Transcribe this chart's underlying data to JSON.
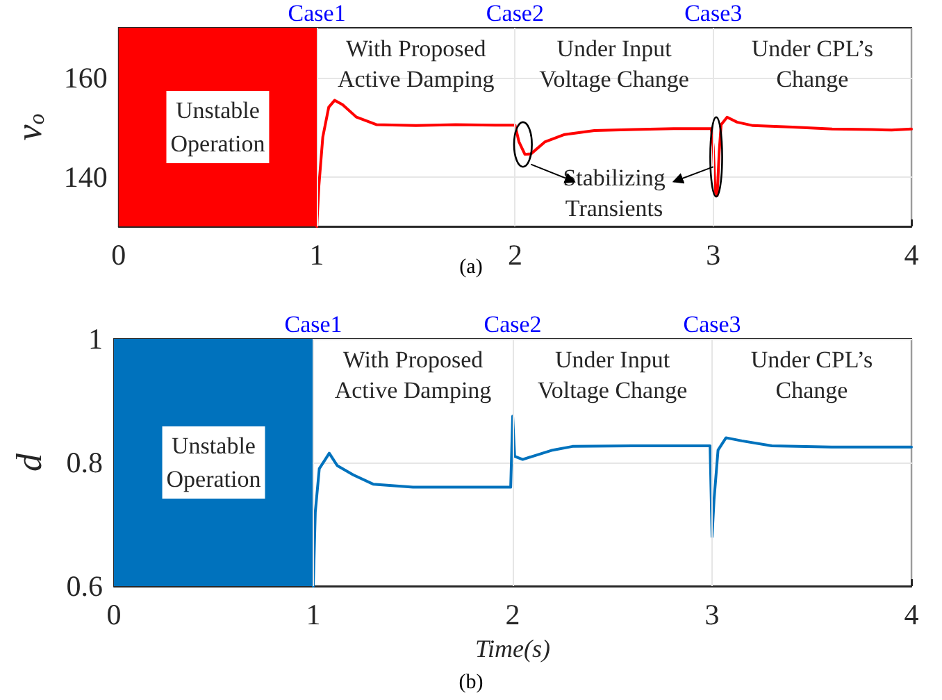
{
  "chart_data": [
    {
      "type": "line",
      "title": "(a)",
      "ylabel": "v$_{o}$",
      "xlim": [
        0,
        4
      ],
      "xticks": [
        0,
        1,
        2,
        3,
        4
      ],
      "ylim": [
        130,
        170
      ],
      "yticks": [
        140,
        160
      ],
      "grid": true,
      "marker": "none",
      "line_style": "solid",
      "series": [
        {
          "color": "#ff0000",
          "x": [
            1.0,
            1.01,
            1.03,
            1.06,
            1.09,
            1.13,
            1.2,
            1.3,
            1.5,
            1.7,
            1.9,
            2.0,
            2.02,
            2.05,
            2.08,
            2.15,
            2.25,
            2.4,
            2.6,
            2.8,
            2.99,
            3.0,
            3.01,
            3.02,
            3.03,
            3.04,
            3.07,
            3.12,
            3.2,
            3.4,
            3.6,
            3.8,
            3.9,
            4.0
          ],
          "values": [
            130,
            138,
            148,
            154,
            155.4,
            154.5,
            152,
            150.5,
            150.3,
            150.5,
            150.4,
            150.4,
            147,
            144.5,
            144.6,
            147,
            148.5,
            149.3,
            149.5,
            149.7,
            149.7,
            146,
            137,
            136.2,
            145,
            150.5,
            152,
            151,
            150.3,
            150,
            149.6,
            149.5,
            149.4,
            149.6
          ]
        }
      ],
      "bands": [
        {
          "axis": "x",
          "from": 0,
          "to": 1,
          "label": "Unstable\nOperation",
          "color": "#ff0000"
        }
      ],
      "ref_lines": [
        {
          "axis": "x",
          "value": 1,
          "label": "Case1",
          "color": "#e6e6e6"
        },
        {
          "axis": "x",
          "value": 2,
          "label": "Case2",
          "color": "#e6e6e6"
        },
        {
          "axis": "x",
          "value": 3,
          "label": "Case3",
          "color": "#e6e6e6"
        }
      ],
      "annotations": [
        "With Proposed\nActive Damping",
        "Under Input\nVoltage Change",
        "Under CPL’s\nChange",
        "Stabilizing\nTransients"
      ]
    },
    {
      "type": "line",
      "title": "(b)",
      "xlabel": "Time(s)",
      "ylabel": "d",
      "xlim": [
        0,
        4
      ],
      "xticks": [
        0,
        1,
        2,
        3,
        4
      ],
      "ylim": [
        0.6,
        1
      ],
      "yticks": [
        0.6,
        0.8,
        1
      ],
      "grid": true,
      "marker": "none",
      "line_style": "solid",
      "series": [
        {
          "color": "#0072bd",
          "x": [
            1.0,
            1.01,
            1.03,
            1.06,
            1.08,
            1.12,
            1.2,
            1.3,
            1.5,
            1.7,
            1.99,
            2.0,
            2.01,
            2.05,
            2.1,
            2.2,
            2.3,
            2.6,
            2.99,
            3.0,
            3.01,
            3.03,
            3.07,
            3.15,
            3.3,
            3.6,
            4.0
          ],
          "values": [
            0.6,
            0.72,
            0.79,
            0.805,
            0.815,
            0.795,
            0.78,
            0.765,
            0.76,
            0.76,
            0.76,
            0.875,
            0.81,
            0.805,
            0.81,
            0.82,
            0.826,
            0.827,
            0.827,
            0.68,
            0.74,
            0.82,
            0.84,
            0.835,
            0.827,
            0.825,
            0.825
          ]
        }
      ],
      "bands": [
        {
          "axis": "x",
          "from": 0,
          "to": 1,
          "label": "Unstable\nOperation",
          "color": "#0072bd"
        }
      ],
      "ref_lines": [
        {
          "axis": "x",
          "value": 1,
          "label": "Case1",
          "color": "#e6e6e6"
        },
        {
          "axis": "x",
          "value": 2,
          "label": "Case2",
          "color": "#e6e6e6"
        },
        {
          "axis": "x",
          "value": 3,
          "label": "Case3",
          "color": "#e6e6e6"
        }
      ],
      "annotations": [
        "With Proposed\nActive Damping",
        "Under Input\nVoltage Change",
        "Under CPL’s\nChange"
      ]
    }
  ]
}
